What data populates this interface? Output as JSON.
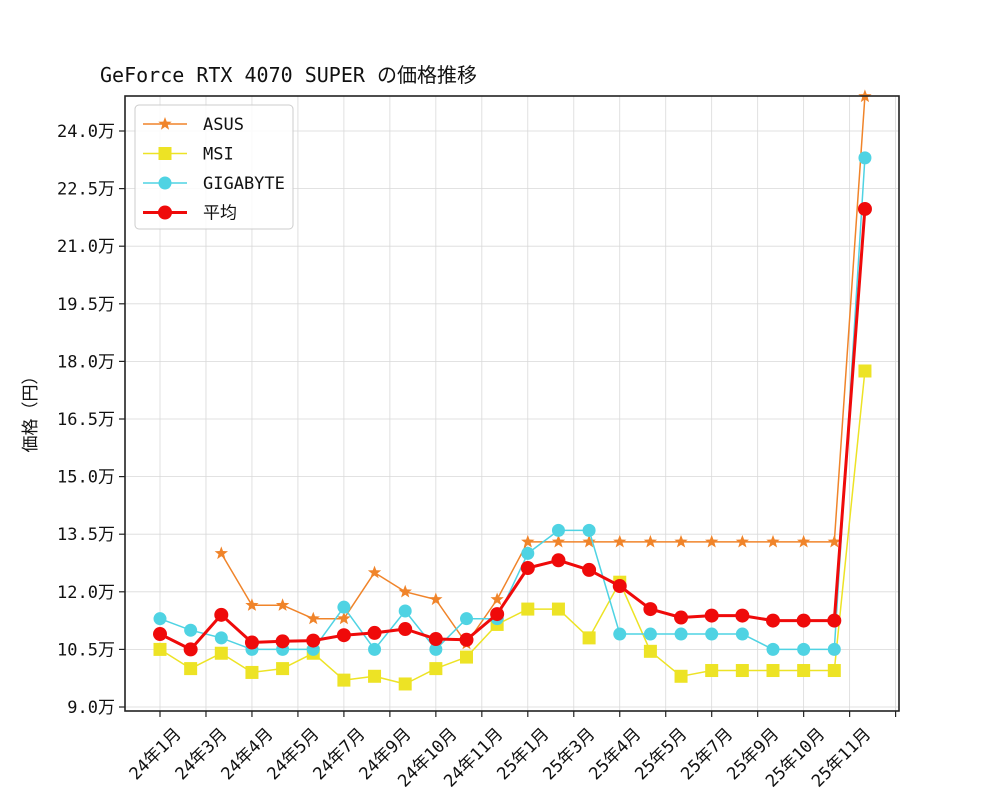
{
  "chart_data": {
    "type": "line",
    "title": "GeForce RTX 4070 SUPER の価格推移",
    "xlabel": "",
    "ylabel": "価格（円）",
    "ylim": [
      8.9,
      24.95
    ],
    "y_unit_suffix": "万",
    "yticks": [
      9.0,
      10.5,
      12.0,
      13.5,
      15.0,
      16.5,
      18.0,
      19.5,
      21.0,
      22.5,
      24.0
    ],
    "ytick_labels": [
      "9.0万",
      "10.5万",
      "12.0万",
      "13.5万",
      "15.0万",
      "16.5万",
      "18.0万",
      "19.5万",
      "21.0万",
      "22.5万",
      "24.0万"
    ],
    "xtick_labels": [
      "24年1月",
      "24年3月",
      "24年4月",
      "24年5月",
      "24年7月",
      "24年9月",
      "24年10月",
      "24年11月",
      "25年1月",
      "25年3月",
      "25年4月",
      "25年5月",
      "25年7月",
      "25年9月",
      "25年10月",
      "25年11月",
      ""
    ],
    "xtick_positions": [
      0,
      1.5,
      3,
      4.5,
      6,
      7.5,
      9,
      10.5,
      12,
      13.5,
      15,
      16.5,
      18,
      19.5,
      21,
      22.5,
      24
    ],
    "x": [
      0,
      1,
      2,
      3,
      4,
      5,
      6,
      7,
      8,
      9,
      10,
      11,
      12,
      13,
      14,
      15,
      16,
      17,
      18,
      19,
      20,
      21,
      22,
      23
    ],
    "grid": true,
    "legend_position": "upper left",
    "series": [
      {
        "name": "ASUS",
        "color": "#f0842a",
        "marker": "star",
        "linewidth": 1.5,
        "values": [
          null,
          null,
          13.0,
          11.65,
          11.65,
          11.3,
          11.3,
          12.5,
          12.0,
          11.8,
          10.65,
          11.8,
          13.3,
          13.3,
          13.3,
          13.3,
          13.3,
          13.3,
          13.3,
          13.3,
          13.3,
          13.3,
          13.3,
          24.9
        ]
      },
      {
        "name": "MSI",
        "color": "#ede325",
        "marker": "square",
        "linewidth": 1.5,
        "values": [
          10.5,
          10.0,
          10.4,
          9.9,
          10.0,
          10.4,
          9.7,
          9.8,
          9.6,
          10.0,
          10.3,
          11.15,
          11.55,
          11.55,
          10.8,
          12.25,
          10.45,
          9.8,
          9.95,
          9.95,
          9.95,
          9.95,
          9.95,
          17.75
        ]
      },
      {
        "name": "GIGABYTE",
        "color": "#4fd3e3",
        "marker": "circle",
        "linewidth": 1.5,
        "values": [
          11.3,
          11.0,
          10.8,
          10.5,
          10.5,
          10.5,
          11.6,
          10.5,
          11.5,
          10.5,
          11.3,
          11.3,
          13.0,
          13.6,
          13.6,
          10.9,
          10.9,
          10.9,
          10.9,
          10.9,
          10.5,
          10.5,
          10.5,
          23.3
        ]
      },
      {
        "name": "平均",
        "color": "#ef0a0a",
        "marker": "circle",
        "linewidth": 3,
        "values": [
          10.9,
          10.5,
          11.4,
          10.68,
          10.71,
          10.73,
          10.87,
          10.93,
          11.03,
          10.77,
          10.75,
          11.42,
          12.62,
          12.82,
          12.57,
          12.15,
          11.55,
          11.33,
          11.38,
          11.38,
          11.25,
          11.25,
          11.25,
          21.97
        ]
      }
    ]
  }
}
